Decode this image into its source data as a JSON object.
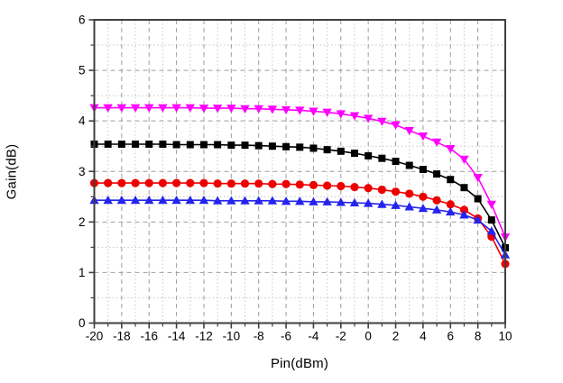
{
  "figure": {
    "background": "#ffffff",
    "frame_color": "#3f3f3f",
    "tick_color": "#3f3f3f",
    "grid_major_color": "#9e9e9e",
    "grid_minor_color": "#c6c6c6",
    "text_color": "#000000"
  },
  "chart_data": {
    "type": "line",
    "title": "",
    "xlabel": "Pin(dBm)",
    "ylabel": "Gain(dB)",
    "xlim": [
      -20,
      10
    ],
    "ylim": [
      0,
      6
    ],
    "x_major_ticks": [
      -20,
      -18,
      -16,
      -14,
      -12,
      -10,
      -8,
      -6,
      -4,
      -2,
      0,
      2,
      4,
      6,
      8,
      10
    ],
    "y_major_ticks": [
      0,
      1,
      2,
      3,
      4,
      5,
      6
    ],
    "x_minor_step": 1,
    "y_minor_step": 0.5,
    "grid": true,
    "legend_position": "none",
    "x": [
      -20,
      -19,
      -18,
      -17,
      -16,
      -15,
      -14,
      -13,
      -12,
      -11,
      -10,
      -9,
      -8,
      -7,
      -6,
      -5,
      -4,
      -3,
      -2,
      -1,
      0,
      1,
      2,
      3,
      4,
      5,
      6,
      7,
      8,
      9,
      10
    ],
    "series": [
      {
        "name": "magenta-triangle-down",
        "color": "#ff00ff",
        "marker": "triangle-down",
        "values": [
          4.26,
          4.26,
          4.26,
          4.26,
          4.26,
          4.26,
          4.26,
          4.26,
          4.25,
          4.25,
          4.25,
          4.24,
          4.24,
          4.23,
          4.22,
          4.21,
          4.19,
          4.17,
          4.14,
          4.1,
          4.05,
          3.99,
          3.92,
          3.81,
          3.7,
          3.58,
          3.45,
          3.24,
          2.88,
          2.35,
          1.7
        ]
      },
      {
        "name": "black-square",
        "color": "#000000",
        "marker": "square",
        "values": [
          3.54,
          3.54,
          3.54,
          3.54,
          3.54,
          3.54,
          3.53,
          3.53,
          3.53,
          3.53,
          3.52,
          3.52,
          3.51,
          3.5,
          3.49,
          3.48,
          3.46,
          3.43,
          3.4,
          3.36,
          3.31,
          3.26,
          3.2,
          3.12,
          3.04,
          2.95,
          2.84,
          2.68,
          2.46,
          2.04,
          1.49
        ]
      },
      {
        "name": "red-circle",
        "color": "#ee0000",
        "marker": "circle",
        "values": [
          2.77,
          2.77,
          2.77,
          2.77,
          2.77,
          2.77,
          2.77,
          2.77,
          2.77,
          2.76,
          2.76,
          2.76,
          2.76,
          2.75,
          2.75,
          2.74,
          2.73,
          2.72,
          2.71,
          2.69,
          2.67,
          2.64,
          2.6,
          2.56,
          2.5,
          2.43,
          2.35,
          2.24,
          2.07,
          1.71,
          1.17
        ]
      },
      {
        "name": "blue-triangle-up",
        "color": "#2424ee",
        "marker": "triangle-up",
        "values": [
          2.43,
          2.43,
          2.43,
          2.43,
          2.43,
          2.43,
          2.43,
          2.43,
          2.43,
          2.42,
          2.42,
          2.42,
          2.42,
          2.42,
          2.41,
          2.41,
          2.4,
          2.4,
          2.39,
          2.38,
          2.37,
          2.35,
          2.33,
          2.3,
          2.27,
          2.24,
          2.2,
          2.14,
          2.04,
          1.82,
          1.35
        ]
      }
    ]
  }
}
